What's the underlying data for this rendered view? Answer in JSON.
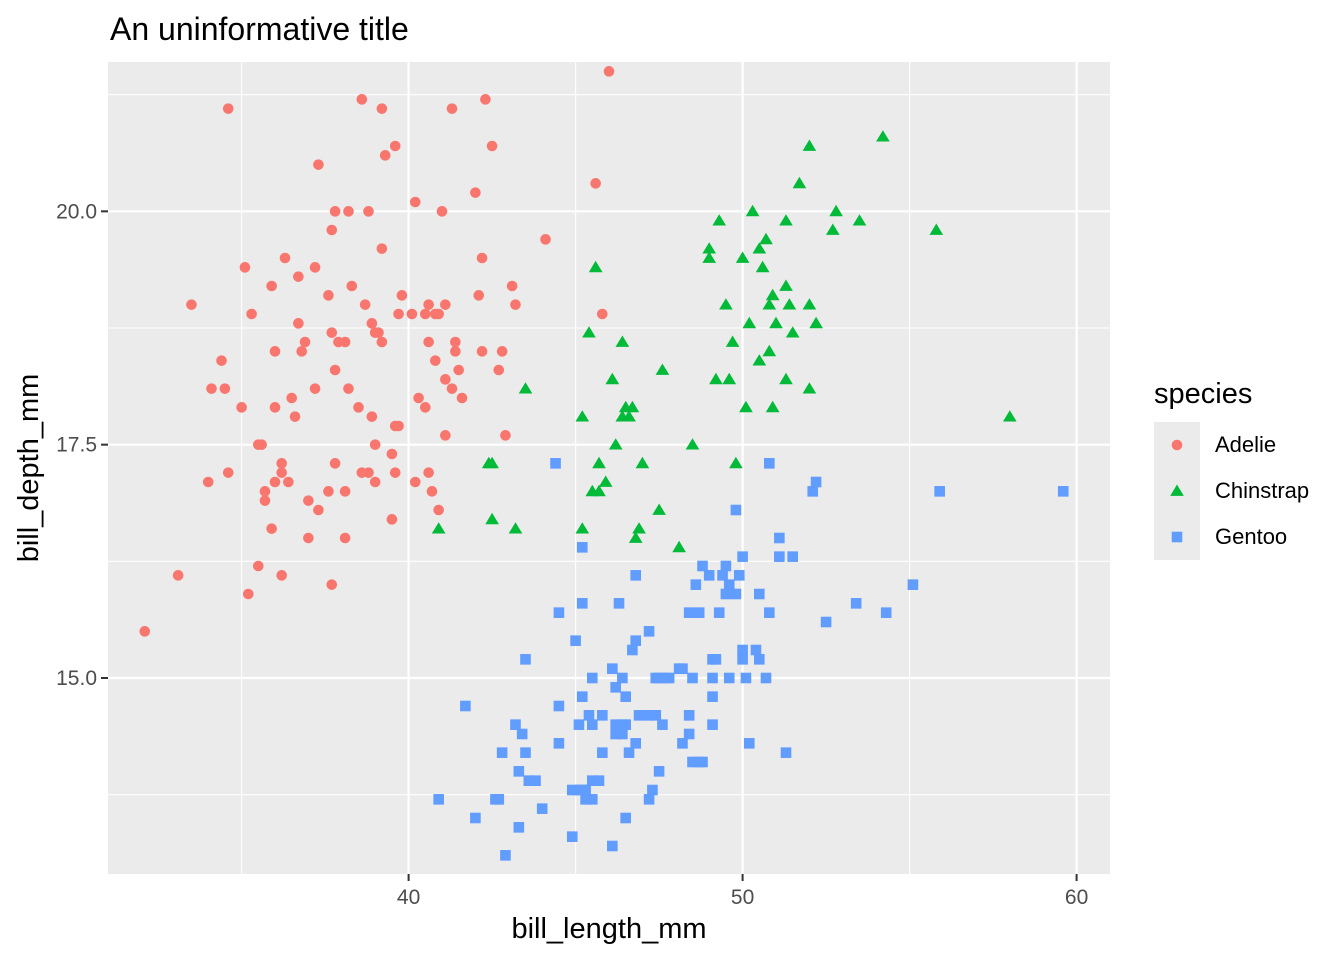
{
  "chart_data": {
    "type": "scatter",
    "title": "An uninformative title",
    "xlabel": "bill_length_mm",
    "ylabel": "bill_depth_mm",
    "xlim": [
      31.0,
      61.0
    ],
    "ylim": [
      12.9,
      21.6
    ],
    "x_ticks": [
      40,
      50,
      60
    ],
    "y_ticks": [
      15.0,
      17.5,
      20.0
    ],
    "x_tick_labels": [
      "40",
      "50",
      "60"
    ],
    "y_tick_labels": [
      "15.0",
      "17.5",
      "20.0"
    ],
    "grid": true,
    "legend": {
      "title": "species",
      "position": "right"
    },
    "colors": {
      "panel": "#EBEBEB",
      "grid": "#FFFFFF",
      "Adelie": "#F8766D",
      "Chinstrap": "#00BA38",
      "Gentoo": "#619CFF"
    },
    "series": [
      {
        "name": "Adelie",
        "shape": "circle",
        "color": "#F8766D",
        "points": [
          [
            32.1,
            15.5
          ],
          [
            33.1,
            16.1
          ],
          [
            33.5,
            19.0
          ],
          [
            34.0,
            17.1
          ],
          [
            34.1,
            18.1
          ],
          [
            34.4,
            18.4
          ],
          [
            34.5,
            18.1
          ],
          [
            34.6,
            21.1
          ],
          [
            34.6,
            17.2
          ],
          [
            35.0,
            17.9
          ],
          [
            35.1,
            19.4
          ],
          [
            35.2,
            15.9
          ],
          [
            35.3,
            18.9
          ],
          [
            35.5,
            16.2
          ],
          [
            35.5,
            17.5
          ],
          [
            35.6,
            17.5
          ],
          [
            35.7,
            16.9
          ],
          [
            35.7,
            17.0
          ],
          [
            35.9,
            19.2
          ],
          [
            35.9,
            16.6
          ],
          [
            36.0,
            17.9
          ],
          [
            36.0,
            18.5
          ],
          [
            36.0,
            17.1
          ],
          [
            36.2,
            17.3
          ],
          [
            36.2,
            16.1
          ],
          [
            36.2,
            17.2
          ],
          [
            36.3,
            19.5
          ],
          [
            36.4,
            17.1
          ],
          [
            36.5,
            18.0
          ],
          [
            36.6,
            17.8
          ],
          [
            36.7,
            18.8
          ],
          [
            36.7,
            19.3
          ],
          [
            36.8,
            18.5
          ],
          [
            36.9,
            18.6
          ],
          [
            37.0,
            16.9
          ],
          [
            37.0,
            16.5
          ],
          [
            37.2,
            18.1
          ],
          [
            37.2,
            19.4
          ],
          [
            37.3,
            20.5
          ],
          [
            37.3,
            16.8
          ],
          [
            37.6,
            19.1
          ],
          [
            37.6,
            17.0
          ],
          [
            37.7,
            18.7
          ],
          [
            37.7,
            19.8
          ],
          [
            37.7,
            16.0
          ],
          [
            37.8,
            18.3
          ],
          [
            37.8,
            17.3
          ],
          [
            37.8,
            20.0
          ],
          [
            37.9,
            18.6
          ],
          [
            38.1,
            18.6
          ],
          [
            38.1,
            16.5
          ],
          [
            38.1,
            17.0
          ],
          [
            38.2,
            18.1
          ],
          [
            38.2,
            20.0
          ],
          [
            38.3,
            19.2
          ],
          [
            38.5,
            17.9
          ],
          [
            38.6,
            21.2
          ],
          [
            38.6,
            17.2
          ],
          [
            38.7,
            19.0
          ],
          [
            38.8,
            17.2
          ],
          [
            38.8,
            20.0
          ],
          [
            38.9,
            18.8
          ],
          [
            38.9,
            17.8
          ],
          [
            39.0,
            17.5
          ],
          [
            39.0,
            18.7
          ],
          [
            39.0,
            17.1
          ],
          [
            39.1,
            18.7
          ],
          [
            39.2,
            21.1
          ],
          [
            39.2,
            19.6
          ],
          [
            39.2,
            18.6
          ],
          [
            39.3,
            20.6
          ],
          [
            39.5,
            17.4
          ],
          [
            39.5,
            16.7
          ],
          [
            39.6,
            17.7
          ],
          [
            39.6,
            17.2
          ],
          [
            39.6,
            20.7
          ],
          [
            39.7,
            18.9
          ],
          [
            39.7,
            17.7
          ],
          [
            39.8,
            19.1
          ],
          [
            40.1,
            18.9
          ],
          [
            40.2,
            20.1
          ],
          [
            40.2,
            17.1
          ],
          [
            40.3,
            18.0
          ],
          [
            40.5,
            18.9
          ],
          [
            40.5,
            17.9
          ],
          [
            40.6,
            18.6
          ],
          [
            40.6,
            19.0
          ],
          [
            40.6,
            17.2
          ],
          [
            40.7,
            17.0
          ],
          [
            40.8,
            18.4
          ],
          [
            40.8,
            18.9
          ],
          [
            40.9,
            18.9
          ],
          [
            40.9,
            16.8
          ],
          [
            41.0,
            20.0
          ],
          [
            41.1,
            18.2
          ],
          [
            41.1,
            19.0
          ],
          [
            41.1,
            17.6
          ],
          [
            41.3,
            21.1
          ],
          [
            41.3,
            18.1
          ],
          [
            41.4,
            18.6
          ],
          [
            41.4,
            18.5
          ],
          [
            41.5,
            18.3
          ],
          [
            41.6,
            18.0
          ],
          [
            42.0,
            20.2
          ],
          [
            42.1,
            19.1
          ],
          [
            42.2,
            18.5
          ],
          [
            42.2,
            19.5
          ],
          [
            42.3,
            21.2
          ],
          [
            42.5,
            20.7
          ],
          [
            42.7,
            18.3
          ],
          [
            42.8,
            18.5
          ],
          [
            42.9,
            17.6
          ],
          [
            43.1,
            19.2
          ],
          [
            43.2,
            19.0
          ],
          [
            44.1,
            19.7
          ],
          [
            45.6,
            20.3
          ],
          [
            45.8,
            18.9
          ],
          [
            46.0,
            21.5
          ]
        ]
      },
      {
        "name": "Chinstrap",
        "shape": "triangle",
        "color": "#00BA38",
        "points": [
          [
            40.9,
            16.6
          ],
          [
            42.4,
            17.3
          ],
          [
            42.5,
            16.7
          ],
          [
            42.5,
            17.3
          ],
          [
            43.2,
            16.6
          ],
          [
            43.5,
            18.1
          ],
          [
            45.2,
            17.8
          ],
          [
            45.2,
            16.6
          ],
          [
            45.4,
            18.7
          ],
          [
            45.5,
            17.0
          ],
          [
            45.6,
            19.4
          ],
          [
            45.7,
            17.3
          ],
          [
            45.7,
            17.0
          ],
          [
            45.9,
            17.1
          ],
          [
            46.1,
            18.2
          ],
          [
            46.2,
            17.5
          ],
          [
            46.4,
            18.6
          ],
          [
            46.4,
            17.8
          ],
          [
            46.5,
            17.9
          ],
          [
            46.6,
            17.8
          ],
          [
            46.7,
            17.9
          ],
          [
            46.8,
            16.5
          ],
          [
            46.9,
            16.6
          ],
          [
            47.0,
            17.3
          ],
          [
            47.5,
            16.8
          ],
          [
            47.6,
            18.3
          ],
          [
            48.1,
            16.4
          ],
          [
            48.5,
            17.5
          ],
          [
            49.0,
            19.5
          ],
          [
            49.0,
            19.6
          ],
          [
            49.2,
            18.2
          ],
          [
            49.3,
            19.9
          ],
          [
            49.5,
            19.0
          ],
          [
            49.6,
            18.2
          ],
          [
            49.7,
            18.6
          ],
          [
            49.8,
            17.3
          ],
          [
            50.0,
            19.5
          ],
          [
            50.1,
            17.9
          ],
          [
            50.2,
            18.8
          ],
          [
            50.3,
            20.0
          ],
          [
            50.5,
            19.6
          ],
          [
            50.5,
            18.4
          ],
          [
            50.6,
            19.4
          ],
          [
            50.7,
            19.7
          ],
          [
            50.8,
            18.5
          ],
          [
            50.8,
            19.0
          ],
          [
            50.9,
            17.9
          ],
          [
            50.9,
            19.1
          ],
          [
            51.0,
            18.8
          ],
          [
            51.3,
            18.2
          ],
          [
            51.3,
            19.9
          ],
          [
            51.3,
            19.2
          ],
          [
            51.4,
            19.0
          ],
          [
            51.5,
            18.7
          ],
          [
            51.7,
            20.3
          ],
          [
            52.0,
            18.1
          ],
          [
            52.0,
            19.0
          ],
          [
            52.0,
            20.7
          ],
          [
            52.2,
            18.8
          ],
          [
            52.7,
            19.8
          ],
          [
            52.8,
            20.0
          ],
          [
            53.5,
            19.9
          ],
          [
            54.2,
            20.8
          ],
          [
            55.8,
            19.8
          ],
          [
            58.0,
            17.8
          ]
        ]
      },
      {
        "name": "Gentoo",
        "shape": "square",
        "color": "#619CFF",
        "points": [
          [
            40.9,
            13.7
          ],
          [
            41.7,
            14.7
          ],
          [
            42.0,
            13.5
          ],
          [
            42.6,
            13.7
          ],
          [
            42.7,
            13.7
          ],
          [
            42.8,
            14.2
          ],
          [
            42.9,
            13.1
          ],
          [
            43.2,
            14.5
          ],
          [
            43.3,
            13.4
          ],
          [
            43.3,
            14.0
          ],
          [
            43.4,
            14.4
          ],
          [
            43.5,
            14.2
          ],
          [
            43.5,
            15.2
          ],
          [
            43.6,
            13.9
          ],
          [
            43.8,
            13.9
          ],
          [
            44.0,
            13.6
          ],
          [
            44.4,
            17.3
          ],
          [
            44.5,
            14.3
          ],
          [
            44.5,
            14.7
          ],
          [
            44.5,
            15.7
          ],
          [
            44.9,
            13.8
          ],
          [
            44.9,
            13.3
          ],
          [
            45.0,
            15.4
          ],
          [
            45.1,
            14.5
          ],
          [
            45.1,
            13.8
          ],
          [
            45.2,
            13.8
          ],
          [
            45.2,
            14.8
          ],
          [
            45.2,
            16.4
          ],
          [
            45.2,
            15.8
          ],
          [
            45.3,
            13.7
          ],
          [
            45.3,
            13.8
          ],
          [
            45.4,
            14.6
          ],
          [
            45.5,
            13.7
          ],
          [
            45.5,
            13.9
          ],
          [
            45.5,
            14.5
          ],
          [
            45.5,
            15.0
          ],
          [
            45.7,
            13.9
          ],
          [
            45.8,
            14.6
          ],
          [
            45.8,
            14.2
          ],
          [
            46.1,
            13.2
          ],
          [
            46.1,
            15.1
          ],
          [
            46.2,
            14.5
          ],
          [
            46.2,
            14.4
          ],
          [
            46.2,
            14.9
          ],
          [
            46.3,
            15.8
          ],
          [
            46.4,
            14.5
          ],
          [
            46.4,
            15.0
          ],
          [
            46.4,
            14.4
          ],
          [
            46.5,
            13.5
          ],
          [
            46.5,
            14.8
          ],
          [
            46.5,
            14.5
          ],
          [
            46.6,
            14.2
          ],
          [
            46.7,
            15.3
          ],
          [
            46.8,
            14.3
          ],
          [
            46.8,
            15.4
          ],
          [
            46.8,
            16.1
          ],
          [
            46.9,
            14.6
          ],
          [
            47.2,
            13.7
          ],
          [
            47.2,
            14.6
          ],
          [
            47.2,
            15.5
          ],
          [
            47.3,
            13.8
          ],
          [
            47.4,
            14.6
          ],
          [
            47.4,
            15.0
          ],
          [
            47.5,
            14.0
          ],
          [
            47.5,
            15.0
          ],
          [
            47.6,
            14.5
          ],
          [
            47.7,
            15.0
          ],
          [
            47.8,
            15.0
          ],
          [
            48.1,
            15.1
          ],
          [
            48.2,
            15.1
          ],
          [
            48.2,
            14.3
          ],
          [
            48.4,
            14.6
          ],
          [
            48.4,
            14.4
          ],
          [
            48.4,
            15.7
          ],
          [
            48.5,
            15.0
          ],
          [
            48.5,
            14.1
          ],
          [
            48.6,
            16.0
          ],
          [
            48.7,
            14.1
          ],
          [
            48.7,
            15.7
          ],
          [
            48.8,
            16.2
          ],
          [
            48.8,
            14.1
          ],
          [
            49.0,
            16.1
          ],
          [
            49.1,
            15.0
          ],
          [
            49.1,
            14.5
          ],
          [
            49.1,
            14.8
          ],
          [
            49.1,
            15.2
          ],
          [
            49.2,
            15.2
          ],
          [
            49.3,
            15.7
          ],
          [
            49.4,
            16.1
          ],
          [
            49.5,
            15.9
          ],
          [
            49.5,
            16.2
          ],
          [
            49.6,
            16.0
          ],
          [
            49.6,
            15.0
          ],
          [
            49.8,
            16.8
          ],
          [
            49.8,
            15.9
          ],
          [
            49.9,
            16.1
          ],
          [
            50.0,
            15.2
          ],
          [
            50.0,
            15.3
          ],
          [
            50.0,
            16.3
          ],
          [
            50.1,
            15.0
          ],
          [
            50.2,
            14.3
          ],
          [
            50.4,
            15.3
          ],
          [
            50.5,
            15.9
          ],
          [
            50.5,
            15.2
          ],
          [
            50.7,
            15.0
          ],
          [
            50.8,
            17.3
          ],
          [
            50.8,
            15.7
          ],
          [
            51.1,
            16.3
          ],
          [
            51.1,
            16.5
          ],
          [
            51.3,
            14.2
          ],
          [
            51.5,
            16.3
          ],
          [
            52.1,
            17.0
          ],
          [
            52.2,
            17.1
          ],
          [
            52.5,
            15.6
          ],
          [
            53.4,
            15.8
          ],
          [
            54.3,
            15.7
          ],
          [
            55.1,
            16.0
          ],
          [
            55.9,
            17.0
          ],
          [
            59.6,
            17.0
          ]
        ]
      }
    ]
  }
}
